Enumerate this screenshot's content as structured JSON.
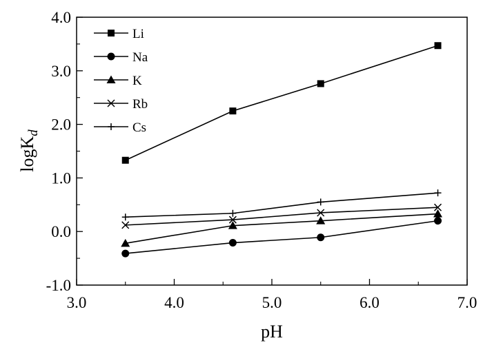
{
  "chart_data": {
    "type": "line",
    "xlabel": "pH",
    "ylabel": {
      "main": "logK",
      "subscript": "d"
    },
    "xlim": [
      3.0,
      7.0
    ],
    "ylim": [
      -1.0,
      4.0
    ],
    "x_ticks": [
      "3.0",
      "4.0",
      "5.0",
      "6.0",
      "7.0"
    ],
    "y_ticks": [
      "-1.0",
      "0.0",
      "1.0",
      "2.0",
      "3.0",
      "4.0"
    ],
    "x_major_values": [
      3.0,
      4.0,
      5.0,
      6.0,
      7.0
    ],
    "x_minor_values": [
      3.5,
      4.5,
      5.5,
      6.5
    ],
    "y_major_values": [
      -1.0,
      0.0,
      1.0,
      2.0,
      3.0,
      4.0
    ],
    "y_minor_values": [
      -0.5,
      0.5,
      1.5,
      2.5,
      3.5
    ],
    "grid": false,
    "legend_position": "top-left",
    "x": [
      3.5,
      4.6,
      5.5,
      6.7
    ],
    "series": [
      {
        "name": "Li",
        "marker": "square",
        "values": [
          1.33,
          2.25,
          2.76,
          3.47
        ]
      },
      {
        "name": "Na",
        "marker": "circle",
        "values": [
          -0.41,
          -0.21,
          -0.11,
          0.2
        ]
      },
      {
        "name": "K",
        "marker": "triangle",
        "values": [
          -0.22,
          0.11,
          0.2,
          0.33
        ]
      },
      {
        "name": "Rb",
        "marker": "x",
        "values": [
          0.12,
          0.22,
          0.35,
          0.45
        ]
      },
      {
        "name": "Cs",
        "marker": "plus",
        "values": [
          0.27,
          0.34,
          0.55,
          0.72
        ]
      }
    ],
    "colors": {
      "line": "#000000",
      "background": "#ffffff"
    }
  }
}
